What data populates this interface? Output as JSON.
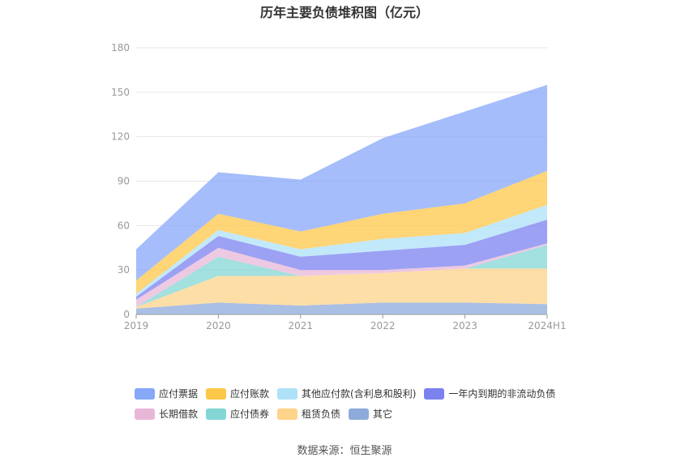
{
  "chart_data": {
    "type": "area",
    "stacked": true,
    "title": "历年主要负债堆积图（亿元）",
    "categories": [
      "2019",
      "2020",
      "2021",
      "2022",
      "2023",
      "2024H1"
    ],
    "ylim": [
      0,
      180
    ],
    "yticks": [
      "0",
      "30",
      "60",
      "90",
      "120",
      "150",
      "180"
    ],
    "grid": true,
    "legend_position": "bottom",
    "series": [
      {
        "name": "其它",
        "color": "#8eaadb",
        "values": [
          4,
          8,
          6,
          8,
          8,
          7
        ]
      },
      {
        "name": "租赁负债",
        "color": "#fed38a",
        "values": [
          1,
          18,
          20,
          20,
          23,
          24
        ]
      },
      {
        "name": "应付债券",
        "color": "#84d6d5",
        "values": [
          0,
          13,
          0,
          0,
          0,
          16
        ]
      },
      {
        "name": "长期借款",
        "color": "#e8b7d8",
        "values": [
          5,
          6,
          4,
          2,
          2,
          1
        ]
      },
      {
        "name": "一年内到期的非流动负债",
        "color": "#7b82f0",
        "values": [
          2,
          8,
          9,
          13,
          14,
          16
        ]
      },
      {
        "name": "其他应付款(含利息和股利)",
        "color": "#aee2f8",
        "values": [
          2,
          4,
          5,
          8,
          8,
          10
        ]
      },
      {
        "name": "应付账款",
        "color": "#fdc74a",
        "values": [
          9,
          11,
          12,
          17,
          20,
          23
        ]
      },
      {
        "name": "应付票据",
        "color": "#87a7f9",
        "values": [
          21,
          28,
          35,
          51,
          62,
          58
        ]
      }
    ],
    "legend_rows": [
      [
        {
          "name": "应付票据",
          "color": "#87a7f9"
        },
        {
          "name": "应付账款",
          "color": "#fdc74a"
        },
        {
          "name": "其他应付款(含利息和股利)",
          "color": "#aee2f8"
        },
        {
          "name": "一年内到期的非流动负债",
          "color": "#7b82f0"
        }
      ],
      [
        {
          "name": "长期借款",
          "color": "#e8b7d8"
        },
        {
          "name": "应付债券",
          "color": "#84d6d5"
        },
        {
          "name": "租赁负债",
          "color": "#fed38a"
        },
        {
          "name": "其它",
          "color": "#8eaadb"
        }
      ]
    ]
  },
  "source_text": "数据来源：恒生聚源"
}
